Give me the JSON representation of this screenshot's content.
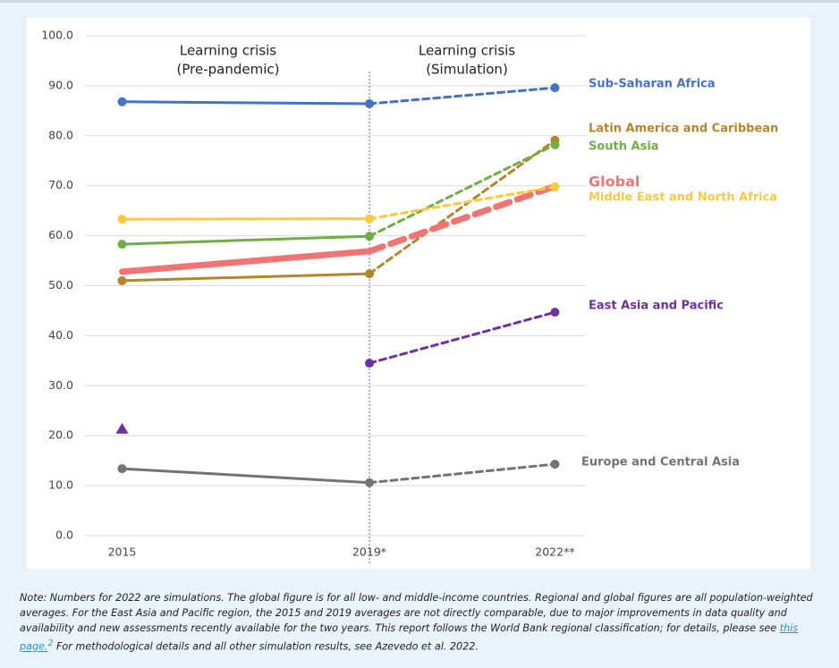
{
  "chart_data": {
    "type": "line",
    "annotations": [
      "Learning crisis",
      "(Pre-pandemic)",
      "Learning crisis",
      "(Simulation)"
    ],
    "x": [
      2015,
      2019,
      2022
    ],
    "xlim": [
      2014.4,
      2022.5
    ],
    "xticks": [
      2015,
      {
        "value": 2019,
        "label": "2019*"
      },
      {
        "value": 2022,
        "label": "2022**"
      }
    ],
    "ylim": [
      0,
      100
    ],
    "yticks": [
      {
        "value": 0,
        "label": "0.0"
      },
      {
        "value": 10,
        "label": "10.0"
      },
      {
        "value": 20,
        "label": "20.0"
      },
      {
        "value": 30,
        "label": "30.0"
      },
      {
        "value": 40,
        "label": "40.0"
      },
      {
        "value": 50,
        "label": "50.0"
      },
      {
        "value": 60,
        "label": "60.0"
      },
      {
        "value": 70,
        "label": "70.0"
      },
      {
        "value": 80,
        "label": "80.0"
      },
      {
        "value": 90,
        "label": "90.0"
      },
      {
        "value": 100,
        "label": "100.0"
      }
    ],
    "grid": true,
    "divider_x": 2019,
    "series": [
      {
        "name": "Sub-Saharan Africa",
        "color": "#4472c4",
        "values": [
          86.8,
          86.4,
          89.6
        ],
        "segments": [
          "solid",
          "dashed"
        ],
        "markers": [
          "circle",
          "circle",
          "circle"
        ],
        "line_width": 3
      },
      {
        "name": "Latin America and Caribbean",
        "color": "#b5852a",
        "values": [
          51.0,
          52.4,
          79.1
        ],
        "segments": [
          "solid",
          "dashed"
        ],
        "markers": [
          "circle",
          "circle",
          "circle"
        ],
        "line_width": 3
      },
      {
        "name": "South Asia",
        "color": "#70ad47",
        "values": [
          58.3,
          59.9,
          78.2
        ],
        "segments": [
          "solid",
          "dashed"
        ],
        "markers": [
          "circle",
          "circle",
          "circle"
        ],
        "line_width": 3
      },
      {
        "name": "Global",
        "color": "#f07474",
        "values": [
          52.8,
          56.9,
          69.9
        ],
        "segments": [
          "solid",
          "dashed"
        ],
        "markers": [
          "none",
          "none",
          "none"
        ],
        "line_width": 7
      },
      {
        "name": "Middle East and North Africa",
        "color": "#ffc83d",
        "values": [
          63.3,
          63.4,
          69.8
        ],
        "segments": [
          "solid",
          "dashed"
        ],
        "markers": [
          "circle",
          "circle",
          "circle"
        ],
        "line_width": 3
      },
      {
        "name": "East Asia and Pacific",
        "color": "#7030a0",
        "values": [
          21.3,
          34.5,
          44.7
        ],
        "segments": [
          "none",
          "dashed"
        ],
        "markers": [
          "triangle",
          "circle",
          "circle"
        ],
        "line_width": 3
      },
      {
        "name": "Europe and Central Asia",
        "color": "#737373",
        "values": [
          13.4,
          10.6,
          14.3
        ],
        "segments": [
          "solid",
          "dashed"
        ],
        "markers": [
          "circle",
          "circle",
          "circle"
        ],
        "line_width": 3
      }
    ]
  },
  "note": {
    "before": "Note: Numbers for 2022 are simulations. The global figure is for all low- and middle-income countries. Regional and global figures are all population-weighted averages. For the East Asia and Pacific region, the 2015 and 2019 averages are not directly comparable, due to major improvements in data quality and availability and new assessments recently available for the two years. This report follows the World Bank regional classification; for details, please see ",
    "link": "this page.",
    "sup": "2",
    "after": " For methodological details and all other simulation results, see Azevedo et al. 2022."
  }
}
